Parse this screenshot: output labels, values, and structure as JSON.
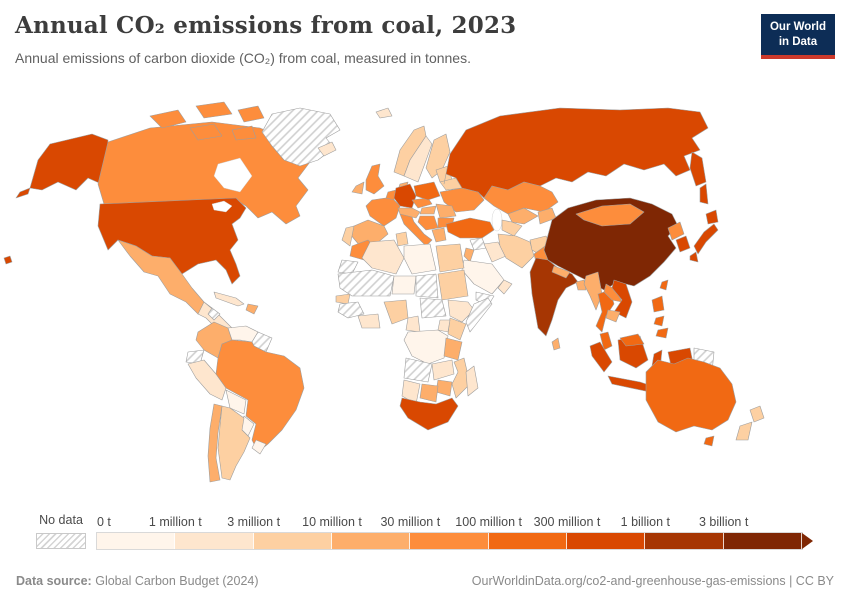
{
  "header": {
    "title": "Annual CO₂ emissions from coal, 2023",
    "subtitle": "Annual emissions of carbon dioxide (CO₂) from coal, measured in tonnes.",
    "logo": {
      "line1": "Our World",
      "line2": "in Data",
      "bg": "#0d2d56",
      "red": "#cc392b"
    }
  },
  "legend": {
    "no_data_label": "No data",
    "bins": [
      {
        "label": "0 t",
        "color": "#fff5eb"
      },
      {
        "label": "1 million t",
        "color": "#fee6ce"
      },
      {
        "label": "3 million t",
        "color": "#fdd0a2"
      },
      {
        "label": "10 million t",
        "color": "#fdae6b"
      },
      {
        "label": "30 million t",
        "color": "#fd8d3c"
      },
      {
        "label": "100 million t",
        "color": "#f16913"
      },
      {
        "label": "300 million t",
        "color": "#d94801"
      },
      {
        "label": "1 billion t",
        "color": "#a63603"
      },
      {
        "label": "3 billion t",
        "color": "#7f2704"
      }
    ]
  },
  "footer": {
    "source_label": "Data source:",
    "source_value": "Global Carbon Budget (2024)",
    "credit": "OurWorldinData.org/co2-and-greenhouse-gas-emissions | CC BY"
  },
  "map": {
    "stroke": "#9e9e9e",
    "countries": {
      "united-states": 6,
      "canada": 4,
      "greenland": "no_data",
      "mexico": 3,
      "guatemala": 1,
      "belize": "no_data",
      "costa-rica-panama": 0,
      "cuba": 1,
      "hispaniola": 3,
      "hawaii": 6,
      "colombia": 3,
      "venezuela": 0,
      "guyanas": "no_data",
      "ecuador": "no_data",
      "peru": 1,
      "brazil": 4,
      "bolivia": 0,
      "paraguay": 0,
      "uruguay": 0,
      "argentina": 2,
      "chile": 3,
      "iceland": 1,
      "svalbard": 1,
      "norway": 2,
      "sweden": 1,
      "finland": 2,
      "denmark": 3,
      "united-kingdom": 4,
      "ireland": 3,
      "benelux": 4,
      "germany": 6,
      "france": 4,
      "spain": 3,
      "portugal": 2,
      "italy": 4,
      "switzerland-austria": 3,
      "czechia-slovakia": 4,
      "poland": 5,
      "baltics": 2,
      "belarus": 2,
      "ukraine": 4,
      "romania": 3,
      "hungary": 3,
      "serbia-balkans": 4,
      "bulgaria": 4,
      "greece": 3,
      "russia": 6,
      "kazakhstan": 4,
      "uzbekistan": 3,
      "turkmenistan": 2,
      "kyrgyzstan-tajikistan": 3,
      "turkey": 5,
      "syria": "no_data",
      "israel-jordan": 3,
      "iraq": 1,
      "iran": 2,
      "saudi-arabia": 0,
      "yemen": "no_data",
      "oman": 1,
      "afghanistan": 2,
      "pakistan": 4,
      "morocco": 4,
      "western-sahara": "no_data",
      "algeria": 1,
      "tunisia": 2,
      "libya": 0,
      "egypt": 2,
      "mauritania-mali": "no_data",
      "niger": 0,
      "chad": "no_data",
      "sudan": 2,
      "senegal": 2,
      "guinea-region": "no_data",
      "ghana-ivory-coast": 1,
      "nigeria": 2,
      "cameroon": 1,
      "central-african-region": "no_data",
      "ethiopia": 1,
      "somalia": "no_data",
      "kenya": 2,
      "uganda": 1,
      "dr-congo": 0,
      "tanzania": 3,
      "angola": "no_data",
      "zambia": 1,
      "mozambique": 2,
      "zimbabwe": 3,
      "botswana": 3,
      "namibia": 1,
      "south-africa": 6,
      "madagascar": 1,
      "china": 8,
      "mongolia": 4,
      "india": 7,
      "nepal": 3,
      "bangladesh": 3,
      "sri-lanka": 3,
      "myanmar": 3,
      "thailand": 5,
      "laos": 4,
      "vietnam": 6,
      "cambodia": 3,
      "malaysia": 5,
      "indonesia": 6,
      "papua-new-guinea": "no_data",
      "philippines": 5,
      "taiwan": 5,
      "north-korea": 4,
      "south-korea": 6,
      "japan": 6,
      "australia": 5,
      "new-zealand": 2
    }
  }
}
